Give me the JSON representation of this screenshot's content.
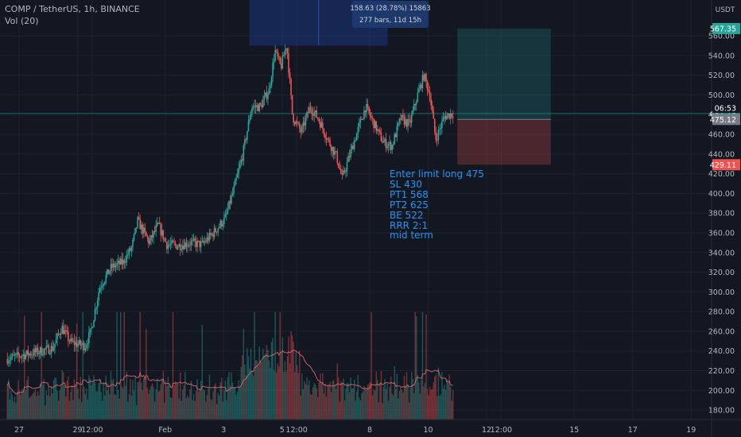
{
  "header": {
    "symbol_line": "COMP / TetherUS, 1h, BINANCE",
    "volume_line": "Vol (20)"
  },
  "colors": {
    "background": "#131722",
    "grid": "#1e222d",
    "up": "#26a69a",
    "down": "#ef5350",
    "text": "#b2b5be",
    "note": "#2196f3",
    "measure": "#2962ff",
    "profit_zone": "#26a69a",
    "loss_zone": "#ef5350",
    "volume_ma": "#e57373"
  },
  "measure_box": {
    "line1": "158.63 (28.78%) 15863",
    "line2": "277 bars, 11d 15h"
  },
  "annotation": [
    "Enter limit long 475",
    "SL 430",
    "PT1 568",
    "PT2 625",
    "BE 522",
    "RRR 2:1",
    "mid term"
  ],
  "chart_data": {
    "type": "candlestick",
    "y_axis": {
      "unit": "USDT",
      "ticks": [
        180,
        200,
        220,
        240,
        260,
        280,
        300,
        320,
        340,
        360,
        380,
        400,
        420,
        440,
        460,
        480,
        500,
        520,
        540,
        560
      ]
    },
    "x_axis": {
      "ticks": [
        {
          "label": "27",
          "day": 27.0
        },
        {
          "label": "29",
          "day": 29.0
        },
        {
          "label": "12:00",
          "day": 29.5
        },
        {
          "label": "Feb",
          "day": 32.0
        },
        {
          "label": "3",
          "day": 34.0
        },
        {
          "label": "5",
          "day": 36.0
        },
        {
          "label": "12:00",
          "day": 36.5
        },
        {
          "label": "8",
          "day": 39.0
        },
        {
          "label": "10",
          "day": 41.0
        },
        {
          "label": "12",
          "day": 43.0
        },
        {
          "label": "12:00",
          "day": 43.5
        },
        {
          "label": "15",
          "day": 46.0
        },
        {
          "label": "17",
          "day": 48.0
        },
        {
          "label": "19",
          "day": 50.0
        }
      ]
    },
    "price_labels": [
      {
        "value": 567.35,
        "label": "567.35",
        "kind": "target"
      },
      {
        "value": 481.18,
        "label": "481.18",
        "kind": "last"
      },
      {
        "value": 475.12,
        "label": "475.12",
        "kind": "entry",
        "countdown": "06:53"
      },
      {
        "value": 429.11,
        "label": "429.11",
        "kind": "stop"
      }
    ],
    "position": {
      "entry": 475.12,
      "target": 567.35,
      "stop": 429.11,
      "start_day": 42.0,
      "end_day": 45.2
    },
    "measure": {
      "from_day": 34.9,
      "to_day": 39.6,
      "low": 551.0,
      "high": 565.0
    },
    "price_path": [
      {
        "day": 26.6,
        "price": 232
      },
      {
        "day": 27.5,
        "price": 238
      },
      {
        "day": 28.2,
        "price": 243
      },
      {
        "day": 28.5,
        "price": 264
      },
      {
        "day": 28.8,
        "price": 249
      },
      {
        "day": 29.3,
        "price": 245
      },
      {
        "day": 29.5,
        "price": 260
      },
      {
        "day": 29.8,
        "price": 305
      },
      {
        "day": 30.2,
        "price": 325
      },
      {
        "day": 30.6,
        "price": 330
      },
      {
        "day": 30.9,
        "price": 345
      },
      {
        "day": 31.1,
        "price": 372
      },
      {
        "day": 31.5,
        "price": 350
      },
      {
        "day": 31.8,
        "price": 368
      },
      {
        "day": 32.1,
        "price": 348
      },
      {
        "day": 32.5,
        "price": 347
      },
      {
        "day": 32.9,
        "price": 350
      },
      {
        "day": 33.3,
        "price": 348
      },
      {
        "day": 33.7,
        "price": 360
      },
      {
        "day": 34.1,
        "price": 375
      },
      {
        "day": 34.4,
        "price": 405
      },
      {
        "day": 34.7,
        "price": 440
      },
      {
        "day": 35.0,
        "price": 488
      },
      {
        "day": 35.3,
        "price": 488
      },
      {
        "day": 35.6,
        "price": 505
      },
      {
        "day": 35.8,
        "price": 545
      },
      {
        "day": 36.0,
        "price": 528
      },
      {
        "day": 36.2,
        "price": 552
      },
      {
        "day": 36.4,
        "price": 478
      },
      {
        "day": 36.7,
        "price": 462
      },
      {
        "day": 37.0,
        "price": 488
      },
      {
        "day": 37.3,
        "price": 475
      },
      {
        "day": 37.6,
        "price": 455
      },
      {
        "day": 37.9,
        "price": 438
      },
      {
        "day": 38.1,
        "price": 415
      },
      {
        "day": 38.5,
        "price": 452
      },
      {
        "day": 38.9,
        "price": 488
      },
      {
        "day": 39.2,
        "price": 470
      },
      {
        "day": 39.5,
        "price": 452
      },
      {
        "day": 39.8,
        "price": 448
      },
      {
        "day": 40.1,
        "price": 476
      },
      {
        "day": 40.4,
        "price": 470
      },
      {
        "day": 40.7,
        "price": 502
      },
      {
        "day": 40.9,
        "price": 520
      },
      {
        "day": 41.1,
        "price": 500
      },
      {
        "day": 41.3,
        "price": 455
      },
      {
        "day": 41.6,
        "price": 478
      },
      {
        "day": 41.85,
        "price": 481
      }
    ],
    "volume": {
      "ma_period": 20,
      "y_axis_pixel_scale_note": "volume bars scaled to bottom band"
    }
  }
}
